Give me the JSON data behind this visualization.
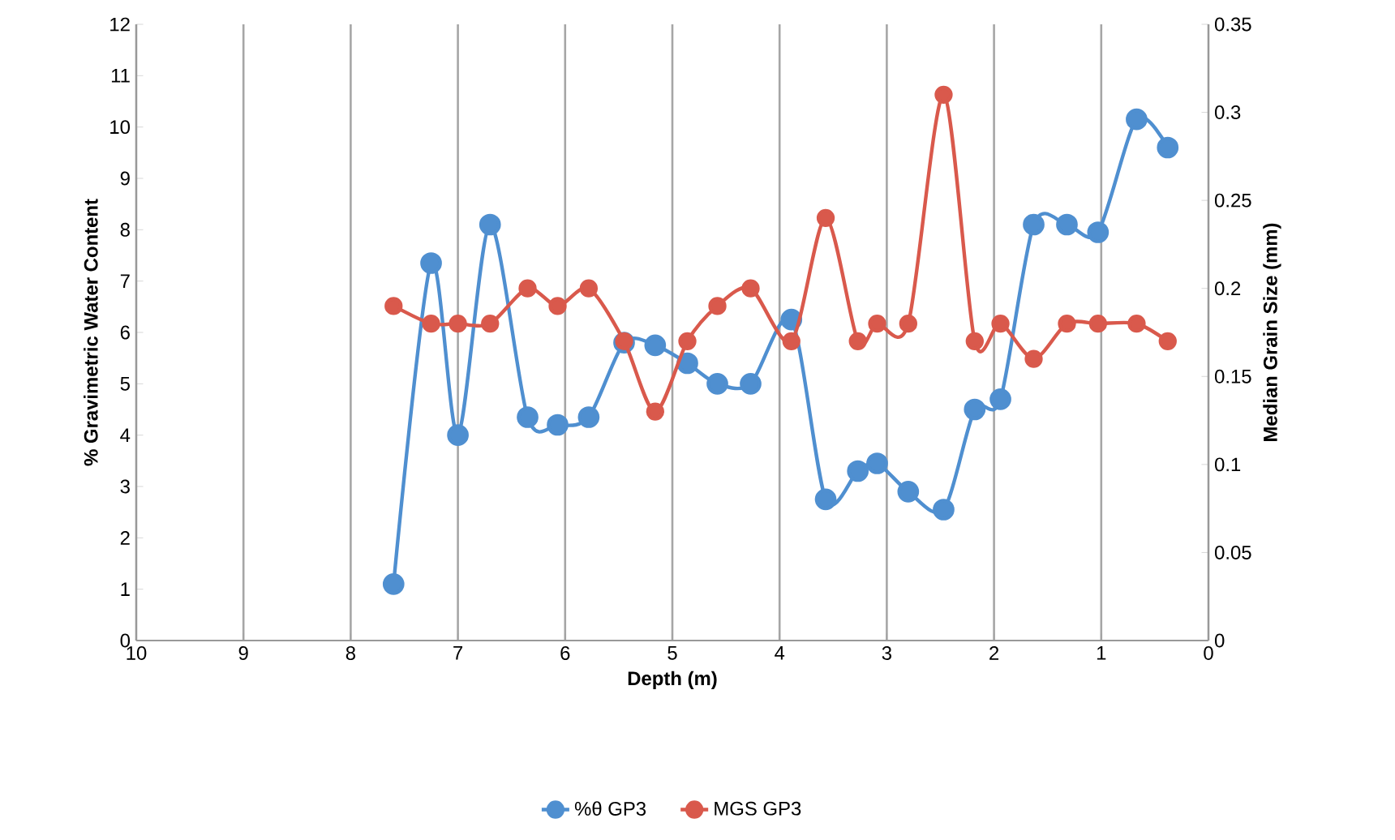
{
  "chart_data": {
    "type": "line",
    "xlabel": "Depth (m)",
    "ylabel": "% Gravimetric Water Content",
    "y2label": "Median Grain Size (mm)",
    "x": [
      7.6,
      7.25,
      7.0,
      6.7,
      6.35,
      6.07,
      5.78,
      5.45,
      5.16,
      4.86,
      4.58,
      4.27,
      3.89,
      3.57,
      3.27,
      3.09,
      2.8,
      2.47,
      2.18,
      1.94,
      1.63,
      1.32,
      1.03,
      0.67,
      0.38
    ],
    "series": [
      {
        "name": "%θ GP3",
        "color": "#4f8fd0",
        "values": [
          1.1,
          7.35,
          4.0,
          8.1,
          4.35,
          4.2,
          4.35,
          5.8,
          5.75,
          5.4,
          5.0,
          5.0,
          6.25,
          2.75,
          3.3,
          3.45,
          2.9,
          2.55,
          4.5,
          4.7,
          8.1,
          8.1,
          7.95,
          10.15,
          9.6
        ]
      },
      {
        "name": "MGS GP3",
        "color": "#d9594c",
        "axis": "y2",
        "values": [
          0.19,
          0.18,
          0.18,
          0.18,
          0.2,
          0.19,
          0.2,
          0.17,
          0.13,
          0.17,
          0.19,
          0.2,
          0.17,
          0.24,
          0.17,
          0.18,
          0.18,
          0.31,
          0.17,
          0.18,
          0.16,
          0.18,
          0.18,
          0.18,
          0.17
        ]
      }
    ],
    "xlim": [
      10,
      0
    ],
    "xticks": [
      10,
      9,
      8,
      7,
      6,
      5,
      4,
      3,
      2,
      1,
      0
    ],
    "ylim": [
      0,
      12
    ],
    "yticks": [
      0,
      1,
      2,
      3,
      4,
      5,
      6,
      7,
      8,
      9,
      10,
      11,
      12
    ],
    "y2lim": [
      0,
      0.35
    ],
    "y2ticks": [
      0,
      0.05,
      0.1,
      0.15,
      0.2,
      0.25,
      0.3,
      0.35
    ],
    "grid": "x",
    "legend": "bottom",
    "marker": "circle",
    "line_style": "solid"
  }
}
